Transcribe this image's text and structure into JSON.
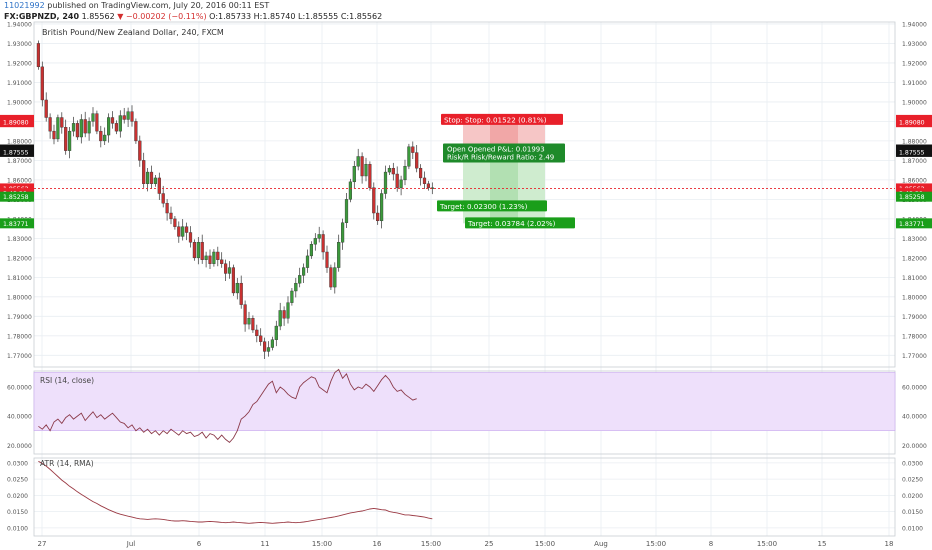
{
  "header": {
    "user": "11021992",
    "published": "published on TradingView.com, July 20, 2016 00:11 EST",
    "symbol": "FX:GBPNZD, 240",
    "last": "1.85562",
    "change": "▼ −0.00202 (−0.11%)",
    "open_label": "O:",
    "open": "1.85733",
    "high_label": "H:",
    "high": "1.85740",
    "low_label": "L:",
    "low": "1.85555",
    "close_label": "C:",
    "close": "1.85562"
  },
  "chart_data": [
    {
      "type": "candlestick",
      "title": "British Pound/New Zealand Dollar, 240, FXCM",
      "ylim": [
        1.764,
        1.941
      ],
      "y_ticks": [
        "1.94000",
        "1.93000",
        "1.92000",
        "1.91000",
        "1.90000",
        "1.89000",
        "1.88000",
        "1.87000",
        "1.86000",
        "1.85000",
        "1.84000",
        "1.83000",
        "1.82000",
        "1.81000",
        "1.80000",
        "1.79000",
        "1.78000",
        "1.77000"
      ],
      "x_ticks": [
        "27",
        "Jul",
        "6",
        "11",
        "15:00",
        "16",
        "15:00",
        "25",
        "15:00",
        "Aug",
        "15:00",
        "8",
        "15:00",
        "15",
        "18"
      ],
      "grid": true,
      "closes": [
        1.918,
        1.901,
        1.892,
        1.885,
        1.881,
        1.892,
        1.887,
        1.875,
        1.885,
        1.889,
        1.882,
        1.891,
        1.884,
        1.89,
        1.894,
        1.885,
        1.88,
        1.883,
        1.892,
        1.889,
        1.885,
        1.893,
        1.891,
        1.895,
        1.89,
        1.88,
        1.87,
        1.858,
        1.864,
        1.858,
        1.861,
        1.853,
        1.848,
        1.843,
        1.84,
        1.836,
        1.831,
        1.836,
        1.833,
        1.828,
        1.82,
        1.828,
        1.819,
        1.821,
        1.817,
        1.823,
        1.819,
        1.817,
        1.812,
        1.815,
        1.802,
        1.807,
        1.796,
        1.786,
        1.789,
        1.783,
        1.78,
        1.777,
        1.772,
        1.774,
        1.778,
        1.785,
        1.793,
        1.789,
        1.797,
        1.803,
        1.807,
        1.811,
        1.815,
        1.821,
        1.827,
        1.83,
        1.832,
        1.823,
        1.815,
        1.805,
        1.815,
        1.828,
        1.838,
        1.85,
        1.859,
        1.867,
        1.872,
        1.862,
        1.868,
        1.856,
        1.843,
        1.839,
        1.853,
        1.864,
        1.866,
        1.863,
        1.856,
        1.86,
        1.867,
        1.877,
        1.874,
        1.866,
        1.861,
        1.858,
        1.856,
        1.856
      ],
      "levels": [
        {
          "name": "stop",
          "value": 1.89077,
          "value2": 1.8908,
          "color": "#e8202a",
          "text": "Stop:  Stop: 0.01522 (0.81%)"
        },
        {
          "name": "entry",
          "value": 1.87558,
          "value2": 1.87555,
          "color": "#111111",
          "text": "Open  Opened P&L: 0.01993",
          "text2": "Risk/R  Risk/Reward Ratio: 2.49"
        },
        {
          "name": "current",
          "value": 1.85562,
          "color": "#e8202a",
          "time": "3:48:20"
        },
        {
          "name": "target1",
          "value": 1.85258,
          "color": "#1a9e1a",
          "text": "Target: 0.02300 (1.23%)"
        },
        {
          "name": "target2",
          "value": 1.83771,
          "color": "#1a9e1a",
          "text": "Target: 0.03784 (2.02%)"
        }
      ]
    },
    {
      "type": "line",
      "title": "RSI (14, close)",
      "ylim": [
        14,
        71
      ],
      "band": [
        30,
        70
      ],
      "y_ticks": [
        "60.0000",
        "40.0000",
        "20.0000"
      ],
      "y_tick_values": [
        60,
        40,
        20
      ],
      "values": [
        33,
        31,
        34,
        30,
        36,
        38,
        35,
        39,
        41,
        38,
        40,
        42,
        37,
        40,
        43,
        39,
        41,
        38,
        40,
        42,
        39,
        36,
        35,
        32,
        34,
        30,
        32,
        29,
        31,
        28,
        30,
        27,
        30,
        28,
        31,
        29,
        27,
        30,
        28,
        29,
        26,
        27,
        29,
        25,
        28,
        27,
        24,
        27,
        24,
        22,
        25,
        30,
        38,
        40,
        43,
        48,
        50,
        54,
        58,
        62,
        64,
        56,
        60,
        58,
        55,
        53,
        52,
        60,
        63,
        65,
        67,
        66,
        60,
        58,
        56,
        64,
        70,
        72,
        66,
        69,
        62,
        58,
        60,
        59,
        62,
        60,
        57,
        61,
        65,
        68,
        65,
        60,
        57,
        58,
        55,
        53,
        51,
        52
      ]
    },
    {
      "type": "line",
      "title": "ATR (14, RMA)",
      "ylim": [
        0.0075,
        0.0315
      ],
      "y_ticks": [
        "0.0300",
        "0.0250",
        "0.0200",
        "0.0150",
        "0.0100"
      ],
      "y_tick_values": [
        0.03,
        0.025,
        0.02,
        0.015,
        0.01
      ],
      "values": [
        0.0305,
        0.0298,
        0.029,
        0.028,
        0.0269,
        0.0258,
        0.0247,
        0.0238,
        0.0228,
        0.022,
        0.0211,
        0.0203,
        0.0196,
        0.0188,
        0.0181,
        0.0175,
        0.0168,
        0.0162,
        0.0156,
        0.0151,
        0.0146,
        0.0142,
        0.0139,
        0.0136,
        0.0133,
        0.013,
        0.0128,
        0.0127,
        0.0126,
        0.0127,
        0.0128,
        0.0127,
        0.0126,
        0.0124,
        0.0122,
        0.0121,
        0.0121,
        0.0122,
        0.0121,
        0.012,
        0.0119,
        0.0118,
        0.0118,
        0.0119,
        0.012,
        0.0119,
        0.0118,
        0.0117,
        0.0116,
        0.0117,
        0.0118,
        0.0117,
        0.0116,
        0.0115,
        0.0114,
        0.0115,
        0.0116,
        0.0117,
        0.0116,
        0.0115,
        0.0114,
        0.0115,
        0.0116,
        0.0117,
        0.0118,
        0.0117,
        0.0116,
        0.0117,
        0.0118,
        0.012,
        0.0122,
        0.0124,
        0.0126,
        0.0128,
        0.013,
        0.0132,
        0.0134,
        0.0137,
        0.014,
        0.0143,
        0.0146,
        0.0148,
        0.015,
        0.0152,
        0.0155,
        0.0158,
        0.016,
        0.0158,
        0.0156,
        0.0155,
        0.015,
        0.0148,
        0.0146,
        0.0143,
        0.014,
        0.014,
        0.0138,
        0.0137,
        0.0135,
        0.0133,
        0.013,
        0.0128
      ]
    }
  ],
  "colors": {
    "up": "#3c9a3c",
    "down": "#c73131",
    "rsi_line": "#8b3a4a",
    "rsi_band": "#eee0fb",
    "atr_line": "#9b3a44",
    "grid": "#e9eef2",
    "axis_text": "#555555"
  }
}
